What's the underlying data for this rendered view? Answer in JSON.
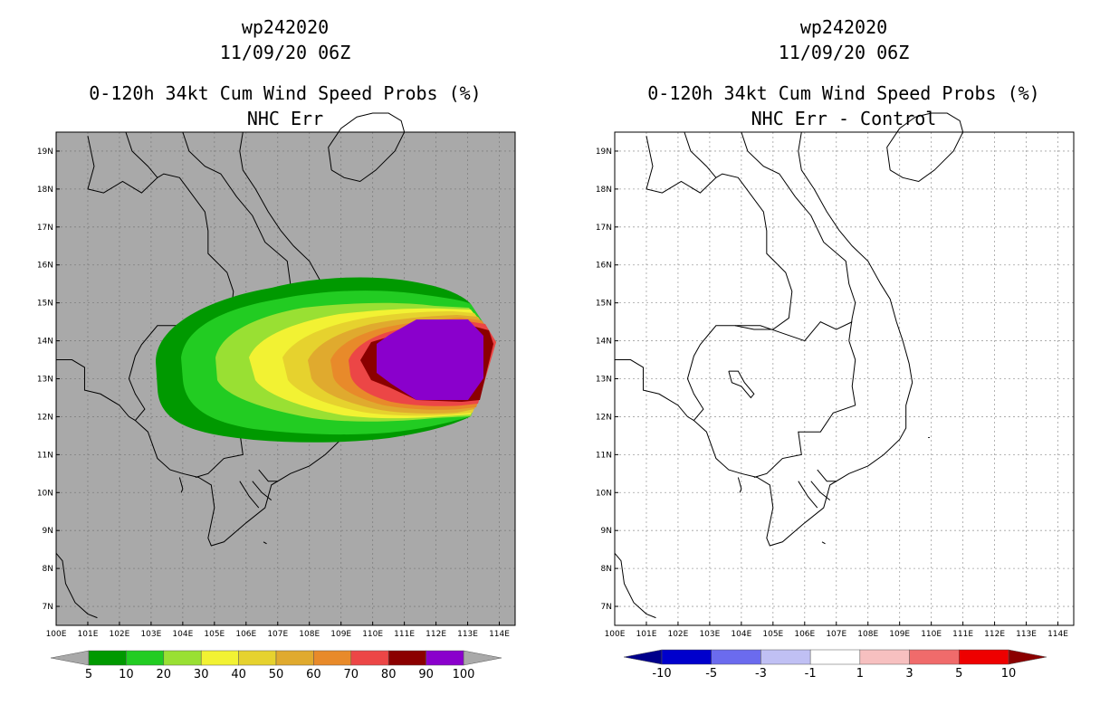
{
  "left": {
    "title": [
      "wp242020",
      "11/09/20 06Z",
      "0-120h 34kt Cum Wind Speed Probs (%)",
      "NHC Err"
    ],
    "background": "#a9a9a9",
    "colorbar": {
      "labels": [
        "5",
        "10",
        "20",
        "30",
        "40",
        "50",
        "60",
        "70",
        "80",
        "90",
        "100"
      ],
      "colors": [
        "#009900",
        "#22cc22",
        "#99e033",
        "#f2f233",
        "#e6d22e",
        "#e0aa2e",
        "#e88a2a",
        "#ec4646",
        "#8b0000",
        "#8a00cc"
      ]
    }
  },
  "right": {
    "title": [
      "wp242020",
      "11/09/20 06Z",
      "0-120h 34kt Cum Wind Speed Probs (%)",
      "NHC Err - Control"
    ],
    "background": "#ffffff",
    "colorbar": {
      "labels": [
        "-10",
        "-5",
        "-3",
        "-1",
        "1",
        "3",
        "5",
        "10"
      ],
      "colors": [
        "#0000cc",
        "#6b6bee",
        "#c0c0f4",
        "#ffffff",
        "#f7c0c0",
        "#f06b6b",
        "#ee0000"
      ],
      "end_colors": [
        "#00008b",
        "#8b0000"
      ]
    }
  },
  "axes": {
    "x_labels": [
      "100E",
      "101E",
      "102E",
      "103E",
      "104E",
      "105E",
      "106E",
      "107E",
      "108E",
      "109E",
      "110E",
      "111E",
      "112E",
      "113E",
      "114E"
    ],
    "y_labels": [
      "7N",
      "8N",
      "9N",
      "10N",
      "11N",
      "12N",
      "13N",
      "14N",
      "15N",
      "16N",
      "17N",
      "18N",
      "19N"
    ],
    "lon_range": [
      100,
      114.5
    ],
    "lat_range": [
      6.5,
      19.5
    ],
    "grid": "dotted"
  }
}
